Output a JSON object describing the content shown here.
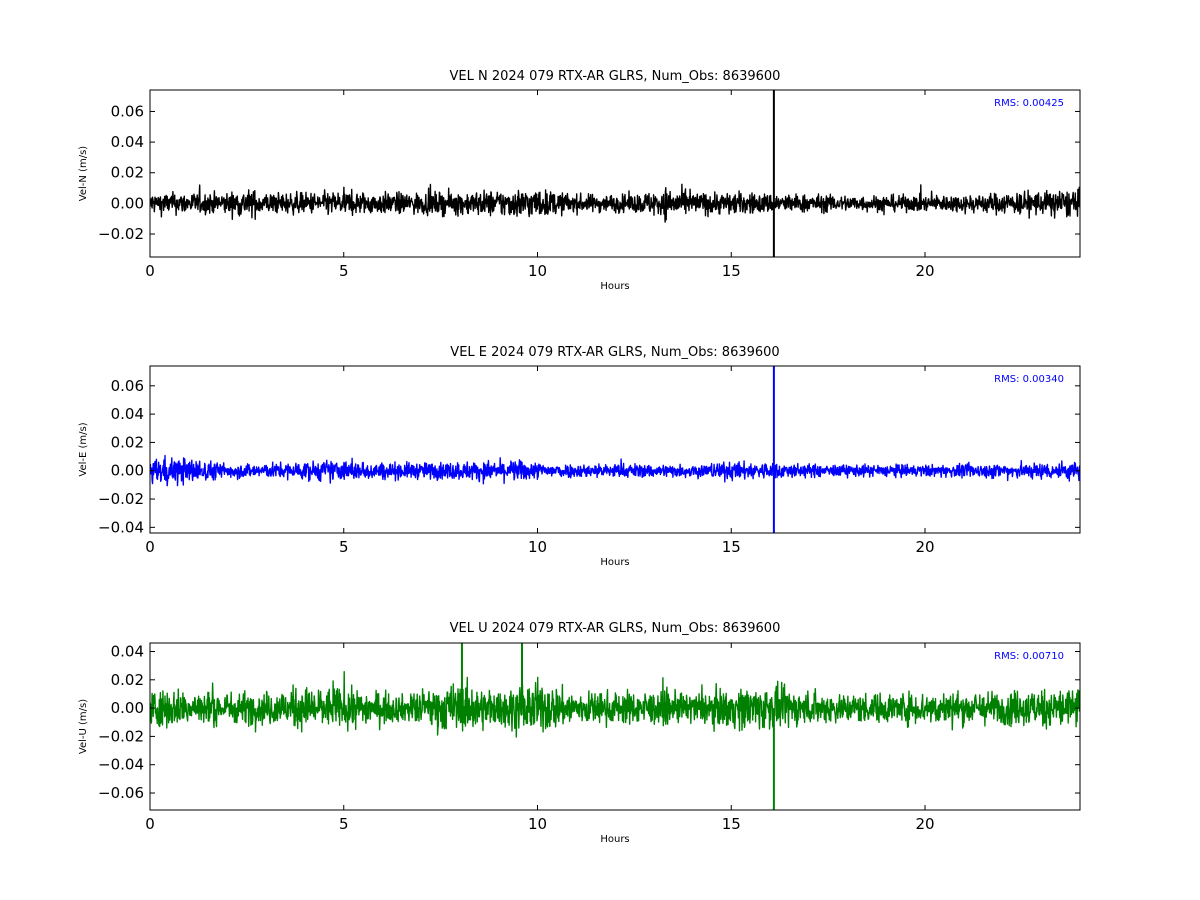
{
  "chart_data": [
    {
      "type": "line",
      "title": "VEL N 2024 079 RTX-AR  GLRS, Num_Obs: 8639600",
      "xlabel": "Hours",
      "ylabel": "Vel-N (m/s)",
      "xlim": [
        0,
        24
      ],
      "ylim": [
        -0.035,
        0.074
      ],
      "xticks": [
        0,
        5,
        10,
        15,
        20
      ],
      "xtick_labels": [
        "0",
        "5",
        "10",
        "15",
        "20"
      ],
      "yticks": [
        -0.02,
        0.0,
        0.02,
        0.04,
        0.06
      ],
      "ytick_labels": [
        "−0.02",
        "0.00",
        "0.02",
        "0.04",
        "0.06"
      ],
      "rms_text": "RMS:  0.00425",
      "rms_color": "#0000ff",
      "series": [
        {
          "color": "#000000",
          "noise_envelope": {
            "x": [
              0,
              1,
              2,
              2.5,
              3,
              4,
              5,
              6,
              7,
              8,
              9,
              9.8,
              10.5,
              11,
              12,
              12.5,
              13,
              13.3,
              13.7,
              14,
              15,
              16,
              17,
              18,
              19,
              20,
              21,
              22,
              23,
              23.5,
              24
            ],
            "amplitude": [
              0.012,
              0.012,
              0.012,
              0.016,
              0.012,
              0.012,
              0.014,
              0.012,
              0.012,
              0.013,
              0.015,
              0.017,
              0.013,
              0.01,
              0.01,
              0.01,
              0.014,
              0.018,
              0.015,
              0.012,
              0.013,
              0.011,
              0.01,
              0.009,
              0.009,
              0.009,
              0.01,
              0.012,
              0.014,
              0.016,
              0.014
            ]
          },
          "spikes": [
            {
              "x": 16.1,
              "y_min": -0.035,
              "y_max": 0.074
            }
          ]
        }
      ]
    },
    {
      "type": "line",
      "title": "VEL E 2024 079 RTX-AR  GLRS, Num_Obs: 8639600",
      "xlabel": "Hours",
      "ylabel": "Vel-E (m/s)",
      "xlim": [
        0,
        24
      ],
      "ylim": [
        -0.044,
        0.074
      ],
      "xticks": [
        0,
        5,
        10,
        15,
        20
      ],
      "xtick_labels": [
        "0",
        "5",
        "10",
        "15",
        "20"
      ],
      "yticks": [
        -0.04,
        -0.02,
        0.0,
        0.02,
        0.04,
        0.06
      ],
      "ytick_labels": [
        "−0.04",
        "−0.02",
        "0.00",
        "0.02",
        "0.04",
        "0.06"
      ],
      "rms_text": "RMS:  0.00340",
      "rms_color": "#0000ff",
      "series": [
        {
          "color": "#0000ff",
          "noise_envelope": {
            "x": [
              0,
              0.5,
              1,
              1.5,
              2,
              3,
              4,
              4.5,
              5,
              6,
              7,
              8,
              9,
              9.5,
              10,
              11,
              12,
              13,
              14,
              15,
              16,
              17,
              18,
              19,
              20,
              21,
              22,
              23,
              24
            ],
            "amplitude": [
              0.014,
              0.018,
              0.016,
              0.012,
              0.009,
              0.009,
              0.011,
              0.013,
              0.012,
              0.01,
              0.01,
              0.011,
              0.012,
              0.013,
              0.01,
              0.008,
              0.009,
              0.008,
              0.008,
              0.011,
              0.01,
              0.008,
              0.007,
              0.008,
              0.007,
              0.008,
              0.009,
              0.01,
              0.012
            ]
          },
          "spikes": [
            {
              "x": 16.1,
              "y_min": -0.044,
              "y_max": 0.074
            }
          ]
        }
      ]
    },
    {
      "type": "line",
      "title": "VEL U 2024 079 RTX-AR  GLRS, Num_Obs: 8639600",
      "xlabel": "Hours",
      "ylabel": "Vel-U (m/s)",
      "xlim": [
        0,
        24
      ],
      "ylim": [
        -0.072,
        0.046
      ],
      "xticks": [
        0,
        5,
        10,
        15,
        20
      ],
      "xtick_labels": [
        "0",
        "5",
        "10",
        "15",
        "20"
      ],
      "yticks": [
        -0.06,
        -0.04,
        -0.02,
        0.0,
        0.02,
        0.04
      ],
      "ytick_labels": [
        "−0.06",
        "−0.04",
        "−0.02",
        "0.00",
        "0.02",
        "0.04"
      ],
      "rms_text": "RMS:  0.00710",
      "rms_color": "#0000ff",
      "series": [
        {
          "color": "#008000",
          "noise_envelope": {
            "x": [
              0,
              1,
              2,
              3,
              3.5,
              4,
              5,
              6,
              6.5,
              7,
              7.5,
              8,
              9,
              9.5,
              10,
              10.5,
              11,
              12,
              13,
              14,
              15,
              15.5,
              16,
              17,
              18,
              19,
              20,
              21,
              22,
              23,
              24
            ],
            "amplitude": [
              0.024,
              0.022,
              0.02,
              0.02,
              0.024,
              0.026,
              0.024,
              0.02,
              0.016,
              0.022,
              0.028,
              0.03,
              0.022,
              0.028,
              0.032,
              0.026,
              0.02,
              0.02,
              0.02,
              0.018,
              0.024,
              0.028,
              0.026,
              0.02,
              0.018,
              0.018,
              0.02,
              0.02,
              0.02,
              0.024,
              0.028
            ]
          },
          "spikes": [
            {
              "x": 8.05,
              "y_min": 0.0,
              "y_max": 0.046
            },
            {
              "x": 9.6,
              "y_min": 0.0,
              "y_max": 0.046
            },
            {
              "x": 16.1,
              "y_min": -0.072,
              "y_max": 0.0
            }
          ]
        }
      ]
    }
  ]
}
